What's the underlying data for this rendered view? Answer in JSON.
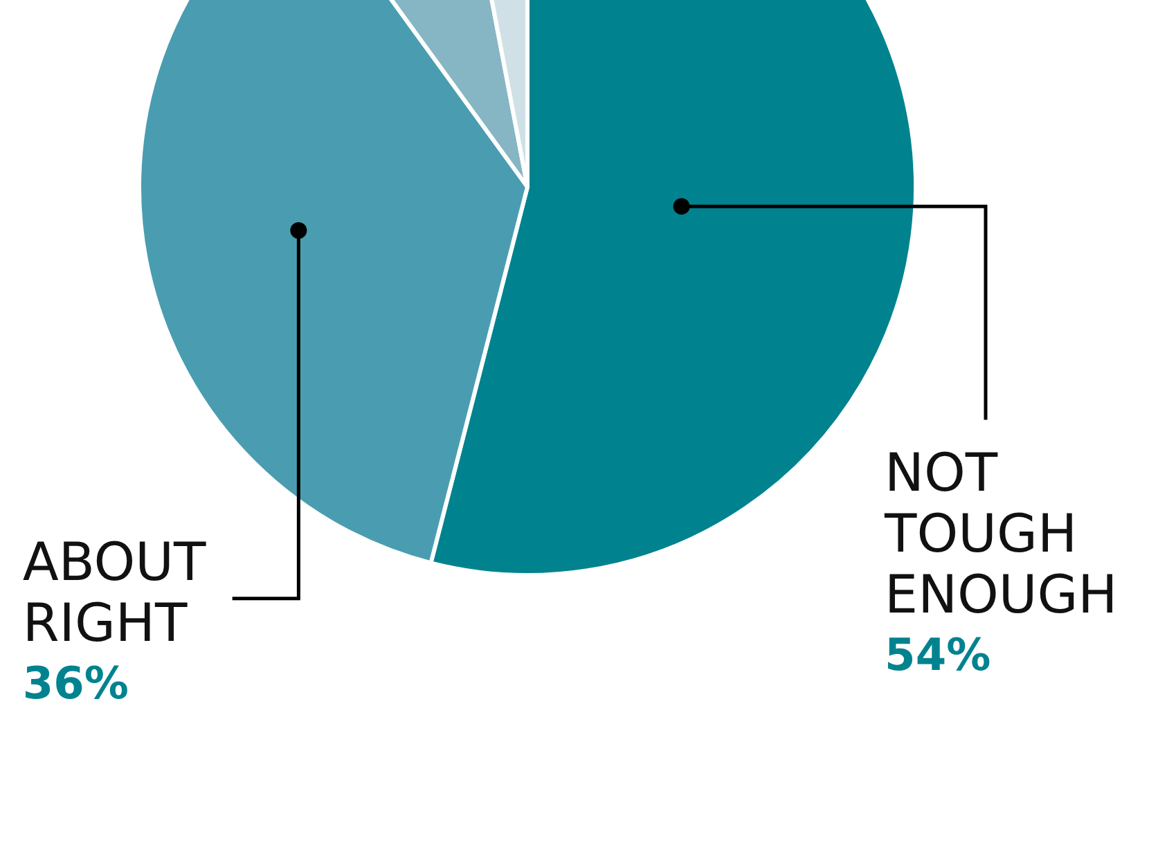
{
  "chart_data": {
    "type": "pie",
    "categories": [
      "NOT TOUGH ENOUGH",
      "ABOUT RIGHT",
      null,
      null
    ],
    "values": [
      54,
      36,
      7,
      3
    ],
    "colors": [
      "#00838f",
      "#4a9db0",
      "#86b6c3",
      "#cfe1e7"
    ],
    "value_labels": [
      "54%",
      "36%",
      null,
      null
    ]
  }
}
